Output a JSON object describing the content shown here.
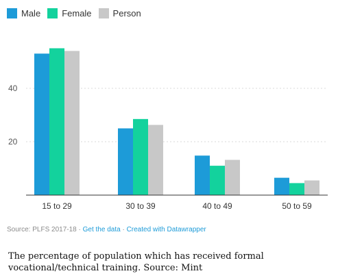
{
  "legend": [
    {
      "name": "Male",
      "color": "#1d9bd8"
    },
    {
      "name": "Female",
      "color": "#13d29d"
    },
    {
      "name": "Person",
      "color": "#c8c8c8"
    }
  ],
  "chart_data": {
    "type": "bar",
    "categories": [
      "15 to 29",
      "30 to 39",
      "40 to 49",
      "50 to 59"
    ],
    "series": [
      {
        "name": "Male",
        "color": "#1d9bd8",
        "values": [
          53,
          25,
          14.8,
          6.5
        ]
      },
      {
        "name": "Female",
        "color": "#13d29d",
        "values": [
          55,
          28.5,
          11,
          4.5
        ]
      },
      {
        "name": "Person",
        "color": "#c8c8c8",
        "values": [
          54,
          26.3,
          13.2,
          5.5
        ]
      }
    ],
    "yticks": [
      20,
      40
    ],
    "ylim": [
      0,
      60
    ],
    "grid": true,
    "legend_position": "top-left"
  },
  "source": {
    "prefix": "Source: PLFS 2017-18 · ",
    "get_data": "Get the data",
    "separator": " · ",
    "created_with": "Created with Datawrapper"
  },
  "caption": "The percentage of population which has received formal vocational/technical training. Source: Mint"
}
